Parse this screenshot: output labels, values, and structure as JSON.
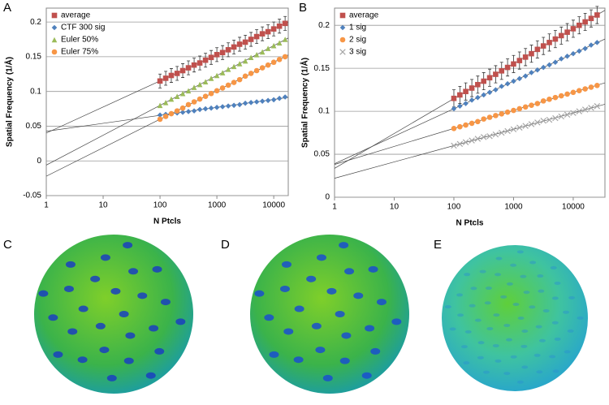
{
  "chart_data": [
    {
      "type": "scatter",
      "panel_label": "A",
      "xlabel": "N Ptcls",
      "ylabel": "Spatial Frequency (1/Å)",
      "xscale": "log",
      "grid": true,
      "legend": "top-left",
      "xlim": [
        1,
        18000
      ],
      "ylim": [
        -0.05,
        0.22
      ],
      "xticks": [
        1,
        10,
        100,
        1000,
        10000
      ],
      "yticks": [
        -0.05,
        0,
        0.05,
        0.1,
        0.15,
        0.2
      ],
      "x": [
        100,
        126,
        158,
        200,
        251,
        316,
        398,
        501,
        631,
        794,
        1000,
        1259,
        1585,
        1995,
        2512,
        3162,
        3981,
        5012,
        6310,
        7943,
        10000,
        12589,
        15849
      ],
      "series": [
        {
          "name": "average",
          "color": "#c0504d",
          "marker": "square",
          "values": [
            0.115,
            0.119,
            0.123,
            0.126,
            0.13,
            0.134,
            0.138,
            0.141,
            0.145,
            0.149,
            0.153,
            0.156,
            0.16,
            0.164,
            0.168,
            0.171,
            0.175,
            0.179,
            0.183,
            0.186,
            0.19,
            0.194,
            0.198
          ],
          "errors": [
            0.01,
            0.01,
            0.01,
            0.01,
            0.01,
            0.01,
            0.01,
            0.01,
            0.01,
            0.01,
            0.01,
            0.01,
            0.01,
            0.01,
            0.01,
            0.01,
            0.01,
            0.01,
            0.01,
            0.01,
            0.01,
            0.01,
            0.01
          ]
        },
        {
          "name": "CTF 300 sig",
          "color": "#4f81bd",
          "marker": "diamond",
          "values": [
            0.066,
            0.067,
            0.068,
            0.069,
            0.07,
            0.071,
            0.072,
            0.074,
            0.075,
            0.076,
            0.077,
            0.078,
            0.079,
            0.08,
            0.081,
            0.083,
            0.084,
            0.085,
            0.086,
            0.087,
            0.088,
            0.09,
            0.092
          ]
        },
        {
          "name": "Euler 50%",
          "color": "#9bbb59",
          "marker": "triangle",
          "values": [
            0.08,
            0.084,
            0.089,
            0.093,
            0.097,
            0.101,
            0.106,
            0.11,
            0.114,
            0.119,
            0.123,
            0.127,
            0.132,
            0.136,
            0.14,
            0.144,
            0.149,
            0.153,
            0.157,
            0.162,
            0.166,
            0.17,
            0.175
          ]
        },
        {
          "name": "Euler 75%",
          "color": "#f79646",
          "marker": "circle",
          "values": [
            0.06,
            0.064,
            0.068,
            0.072,
            0.076,
            0.081,
            0.085,
            0.089,
            0.093,
            0.097,
            0.101,
            0.105,
            0.109,
            0.113,
            0.117,
            0.122,
            0.126,
            0.13,
            0.134,
            0.138,
            0.142,
            0.146,
            0.15
          ]
        }
      ]
    },
    {
      "type": "scatter",
      "panel_label": "B",
      "xlabel": "N Ptcls",
      "ylabel": "Spatial Frequency (1/Å)",
      "xscale": "log",
      "grid": true,
      "legend": "top-left",
      "xlim": [
        1,
        34000
      ],
      "ylim": [
        0,
        0.22
      ],
      "xticks": [
        1,
        10,
        100,
        1000,
        10000
      ],
      "yticks": [
        0,
        0.05,
        0.1,
        0.15,
        0.2
      ],
      "x": [
        100,
        126,
        158,
        200,
        251,
        316,
        398,
        501,
        631,
        794,
        1000,
        1259,
        1585,
        1995,
        2512,
        3162,
        3981,
        5012,
        6310,
        7943,
        10000,
        12589,
        15849,
        19953,
        25119
      ],
      "series": [
        {
          "name": "average",
          "color": "#c0504d",
          "marker": "square",
          "values": [
            0.115,
            0.119,
            0.123,
            0.127,
            0.131,
            0.135,
            0.139,
            0.143,
            0.147,
            0.151,
            0.155,
            0.159,
            0.163,
            0.167,
            0.172,
            0.176,
            0.18,
            0.184,
            0.188,
            0.192,
            0.196,
            0.2,
            0.204,
            0.208,
            0.212
          ],
          "errors": [
            0.01,
            0.01,
            0.01,
            0.01,
            0.01,
            0.01,
            0.01,
            0.01,
            0.01,
            0.01,
            0.01,
            0.01,
            0.01,
            0.01,
            0.01,
            0.01,
            0.01,
            0.01,
            0.01,
            0.01,
            0.01,
            0.01,
            0.01,
            0.01,
            0.01
          ]
        },
        {
          "name": "1 sig",
          "color": "#4f81bd",
          "marker": "diamond",
          "values": [
            0.103,
            0.106,
            0.109,
            0.113,
            0.116,
            0.119,
            0.122,
            0.125,
            0.129,
            0.132,
            0.135,
            0.138,
            0.141,
            0.145,
            0.148,
            0.151,
            0.154,
            0.157,
            0.161,
            0.164,
            0.167,
            0.17,
            0.173,
            0.177,
            0.18
          ]
        },
        {
          "name": "2 sig",
          "color": "#f79646",
          "marker": "circle",
          "values": [
            0.08,
            0.082,
            0.084,
            0.086,
            0.088,
            0.091,
            0.093,
            0.095,
            0.097,
            0.099,
            0.101,
            0.103,
            0.105,
            0.107,
            0.109,
            0.112,
            0.114,
            0.116,
            0.118,
            0.12,
            0.122,
            0.124,
            0.126,
            0.128,
            0.13
          ]
        },
        {
          "name": "3 sig",
          "color": "#a6a6a6",
          "marker": "cross",
          "values": [
            0.06,
            0.062,
            0.064,
            0.066,
            0.068,
            0.07,
            0.071,
            0.073,
            0.075,
            0.077,
            0.079,
            0.081,
            0.083,
            0.085,
            0.087,
            0.089,
            0.09,
            0.092,
            0.094,
            0.096,
            0.098,
            0.1,
            0.102,
            0.104,
            0.106
          ]
        }
      ]
    }
  ],
  "images": [
    {
      "label": "C"
    },
    {
      "label": "D"
    },
    {
      "label": "E"
    }
  ]
}
